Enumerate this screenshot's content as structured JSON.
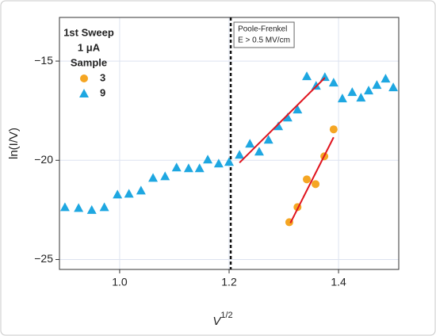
{
  "chart_data": {
    "type": "scatter",
    "y_label": "ln(I/V)",
    "x_label": {
      "base": "V",
      "superscript": "1/2"
    },
    "legend_title": [
      "1st Sweep",
      "1 μA",
      "Sample"
    ],
    "legend": "upper left",
    "annotation": [
      "Poole-Frenkel",
      "E > 0.5 MV/cm"
    ],
    "xlim": [
      0.89,
      1.51
    ],
    "ylim": [
      -25.5,
      -12.8
    ],
    "xticks": [
      {
        "value": 1,
        "label": "1.0"
      },
      1.2,
      1.4
    ],
    "yticks": [
      {
        "value": -25,
        "label": "−25"
      },
      {
        "value": -20,
        "label": "−20"
      },
      {
        "value": -15,
        "label": "−15"
      }
    ],
    "grid": true,
    "reference_line": {
      "x": 1.203,
      "color": "#111111"
    },
    "series": [
      {
        "name": "3",
        "color": "#f5a623",
        "marker": "circle",
        "x": [
          1.31,
          1.325,
          1.342,
          1.358,
          1.374,
          1.391
        ],
        "values": [
          -23.12,
          -22.36,
          -20.96,
          -21.2,
          -19.8,
          -18.44
        ]
      },
      {
        "name": "9",
        "color": "#1ea7e1",
        "marker": "triangle",
        "x": [
          0.9,
          0.925,
          0.949,
          0.972,
          0.996,
          1.017,
          1.039,
          1.061,
          1.083,
          1.104,
          1.126,
          1.146,
          1.161,
          1.181,
          1.2,
          1.219,
          1.238,
          1.255,
          1.272,
          1.29,
          1.307,
          1.325,
          1.342,
          1.359,
          1.375,
          1.391,
          1.407,
          1.425,
          1.441,
          1.455,
          1.47,
          1.486,
          1.5
        ],
        "values": [
          -22.36,
          -22.4,
          -22.5,
          -22.36,
          -21.72,
          -21.68,
          -21.52,
          -20.88,
          -20.8,
          -20.36,
          -20.4,
          -20.4,
          -19.96,
          -20.16,
          -20.08,
          -19.72,
          -19.16,
          -19.56,
          -18.96,
          -18.28,
          -17.84,
          -17.44,
          -15.76,
          -16.24,
          -15.8,
          -16.08,
          -16.88,
          -16.56,
          -16.84,
          -16.48,
          -16.2,
          -15.88,
          -16.32
        ]
      }
    ],
    "fit_lines": [
      {
        "color": "#e0141e",
        "x": [
          1.219,
          1.375
        ],
        "values": [
          -20.12,
          -15.84
        ]
      },
      {
        "color": "#e0141e",
        "x": [
          1.312,
          1.391
        ],
        "values": [
          -23.16,
          -18.84
        ]
      }
    ]
  }
}
